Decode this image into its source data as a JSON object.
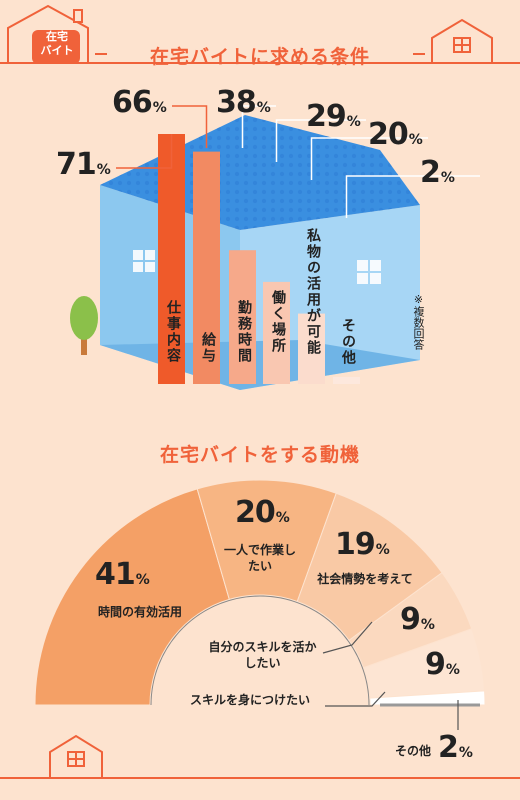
{
  "badge": {
    "line1": "在宅",
    "line2": "バイト"
  },
  "chart1": {
    "title": "在宅バイトに求める条件",
    "note": "※複数回答",
    "colors": [
      "#ef5a2a",
      "#f28a62",
      "#f6a98a",
      "#f9c7b1",
      "#fbdccd",
      "#fde8dd"
    ]
  },
  "chart2": {
    "title": "在宅バイトをする動機",
    "colors": [
      "#f4a066",
      "#f7b583",
      "#f9c9a5",
      "#fbd9bf",
      "#fde5d3",
      "#ffffff"
    ]
  },
  "chart_data": [
    {
      "type": "bar",
      "title": "在宅バイトに求める条件",
      "categories": [
        "仕事内容",
        "給与",
        "勤務時間",
        "働く場所",
        "私物の活用が可能",
        "その他"
      ],
      "values": [
        71,
        66,
        38,
        29,
        20,
        2
      ],
      "unit": "%",
      "ylim": [
        0,
        71
      ]
    },
    {
      "type": "pie",
      "title": "在宅バイトをする動機",
      "categories": [
        "時間の有効活用",
        "一人で作業したい",
        "社会情勢を考えて",
        "自分のスキルを活かしたい",
        "スキルを身につけたい",
        "その他"
      ],
      "values": [
        41,
        20,
        19,
        9,
        9,
        2
      ],
      "unit": "%"
    }
  ]
}
